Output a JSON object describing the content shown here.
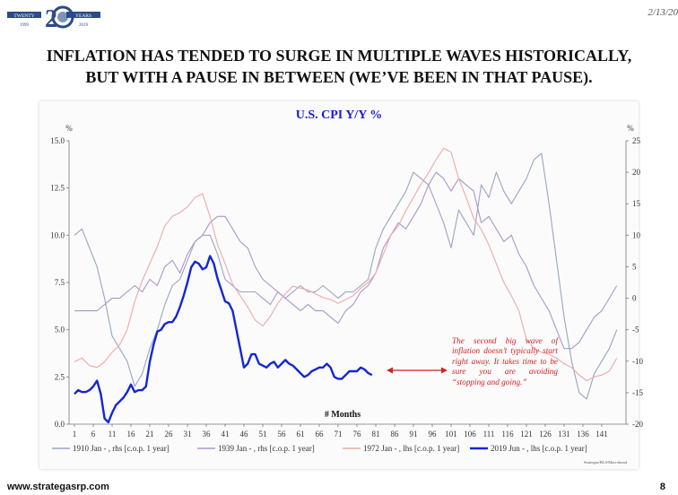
{
  "header": {
    "logo_text_left": "TWENTY",
    "logo_text_right": "YEARS",
    "logo_years_left": "1999",
    "logo_years_right": "2019",
    "date": "2/13/20"
  },
  "headline": {
    "line1": "INFLATION HAS TENDED TO SURGE IN MULTIPLE WAVES HISTORICALLY,",
    "line2": "BUT WITH A PAUSE IN BETWEEN (WE’VE BEEN IN THAT PAUSE)."
  },
  "footer": {
    "url": "www.strategasrp.com",
    "page": "8"
  },
  "chart_data": {
    "type": "line",
    "title": "U.S. CPI Y/Y %",
    "xlabel": "# Months",
    "left_unit": "%",
    "right_unit": "%",
    "xlim": [
      1,
      146
    ],
    "ylim_left": [
      0,
      15
    ],
    "ylim_right": [
      -20,
      25
    ],
    "x_ticks": [
      1,
      6,
      11,
      16,
      21,
      26,
      31,
      36,
      41,
      46,
      51,
      56,
      61,
      66,
      71,
      76,
      81,
      86,
      91,
      96,
      101,
      106,
      111,
      116,
      121,
      126,
      131,
      136,
      141
    ],
    "left_ticks": [
      "0.0",
      "2.5",
      "5.0",
      "7.5",
      "10.0",
      "12.5",
      "15.0"
    ],
    "right_ticks": [
      "-20",
      "-15",
      "-10",
      "-5",
      "0",
      "5",
      "10",
      "15",
      "20",
      "25"
    ],
    "annotation": "The second big wave of inflation doesn’t typically start right away. It takes time to be sure you are avoiding “stopping and going.”",
    "source": "Strategas/BLS/Macrobond",
    "colors": {
      "s1910": "#9aa3c4",
      "s1939": "#a996cc",
      "s1972": "#f0a8ab",
      "s2019": "#1226d8",
      "title": "#1a1adb",
      "annotation": "#d42020",
      "arrow": "#d42020"
    },
    "series": [
      {
        "name": "1910 Jan - , rhs [c.o.p. 1 year]",
        "axis": "right",
        "x": [
          1,
          3,
          5,
          7,
          9,
          11,
          13,
          15,
          17,
          19,
          21,
          23,
          25,
          27,
          29,
          31,
          33,
          35,
          37,
          39,
          41,
          43,
          45,
          47,
          49,
          51,
          53,
          55,
          57,
          59,
          61,
          63,
          65,
          67,
          69,
          71,
          73,
          75,
          77,
          79,
          81,
          83,
          85,
          87,
          89,
          91,
          93,
          95,
          97,
          99,
          101,
          103,
          105,
          107,
          109,
          111,
          113,
          115,
          117,
          119,
          121,
          123,
          125,
          127,
          129,
          131,
          133,
          135,
          137,
          139,
          141,
          143,
          145
        ],
        "values": [
          10,
          11,
          8,
          5,
          0,
          -6,
          -8,
          -10,
          -14,
          -12,
          -8,
          -5,
          -1,
          2,
          3,
          6,
          9,
          10,
          10,
          7,
          3,
          2,
          1,
          1,
          1,
          0,
          -1,
          1,
          0,
          1,
          2,
          1,
          1,
          2,
          1,
          0,
          1,
          1,
          2,
          3,
          8,
          11,
          13,
          15,
          17,
          20,
          19,
          18,
          15,
          12,
          8,
          14,
          12,
          10,
          18,
          16,
          20,
          17,
          15,
          17,
          19,
          22,
          23,
          15,
          6,
          -3,
          -10,
          -15,
          -16,
          -12,
          -10,
          -8,
          -5
        ]
      },
      {
        "name": "1939 Jan - , rhs [c.o.p. 1 year]",
        "axis": "right",
        "x": [
          1,
          3,
          5,
          7,
          9,
          11,
          13,
          15,
          17,
          19,
          21,
          23,
          25,
          27,
          29,
          31,
          33,
          35,
          37,
          39,
          41,
          43,
          45,
          47,
          49,
          51,
          53,
          55,
          57,
          59,
          61,
          63,
          65,
          67,
          69,
          71,
          73,
          75,
          77,
          79,
          81,
          83,
          85,
          87,
          89,
          91,
          93,
          95,
          97,
          99,
          101,
          103,
          105,
          107,
          109,
          111,
          113,
          115,
          117,
          119,
          121,
          123,
          125,
          127,
          129,
          131,
          133,
          135,
          137,
          139,
          141,
          143,
          145
        ],
        "values": [
          -2,
          -2,
          -2,
          -2,
          -1,
          0,
          0,
          1,
          2,
          1,
          3,
          2,
          5,
          6,
          4,
          7,
          9,
          10,
          12,
          13,
          13,
          11,
          9,
          8,
          5,
          3,
          2,
          1,
          0,
          -1,
          -2,
          -1,
          -2,
          -2,
          -3,
          -4,
          -2,
          -1,
          1,
          2,
          4,
          8,
          10,
          12,
          11,
          13,
          15,
          18,
          20,
          19,
          17,
          19,
          18,
          17,
          12,
          13,
          11,
          9,
          10,
          7,
          5,
          2,
          0,
          -2,
          -5,
          -8,
          -8,
          -7,
          -5,
          -3,
          -2,
          0,
          2
        ]
      },
      {
        "name": "1972 Jan - , lhs [c.o.p. 1 year]",
        "axis": "left",
        "x": [
          1,
          3,
          5,
          7,
          9,
          11,
          13,
          15,
          17,
          19,
          21,
          23,
          25,
          27,
          29,
          31,
          33,
          35,
          37,
          39,
          41,
          43,
          45,
          47,
          49,
          51,
          53,
          55,
          57,
          59,
          61,
          63,
          65,
          67,
          69,
          71,
          73,
          75,
          77,
          79,
          81,
          83,
          85,
          87,
          89,
          91,
          93,
          95,
          97,
          99,
          101,
          103,
          105,
          107,
          109,
          111,
          113,
          115,
          117,
          119,
          121,
          123,
          125,
          127,
          129,
          131,
          133,
          135,
          137,
          139,
          141,
          143,
          145
        ],
        "values": [
          3.3,
          3.5,
          3.1,
          3.0,
          3.3,
          3.8,
          4.2,
          5.0,
          6.5,
          7.6,
          8.5,
          9.4,
          10.5,
          11.0,
          11.2,
          11.5,
          12.0,
          12.2,
          11.0,
          9.5,
          8.5,
          7.4,
          6.8,
          6.2,
          5.5,
          5.2,
          5.7,
          6.4,
          6.9,
          7.3,
          7.2,
          7.1,
          6.9,
          6.7,
          6.6,
          6.4,
          6.6,
          6.8,
          7.2,
          7.5,
          8.0,
          9.0,
          10.0,
          10.5,
          11.3,
          12.0,
          12.7,
          13.3,
          14.0,
          14.6,
          14.4,
          13.0,
          12.0,
          10.9,
          10.3,
          9.5,
          8.5,
          7.5,
          6.8,
          6.0,
          4.5,
          4.0,
          3.8,
          3.7,
          3.5,
          3.2,
          3.0,
          2.6,
          2.3,
          2.5,
          2.6,
          2.8,
          3.5
        ]
      },
      {
        "name": "2019 Jun - , lhs [c.o.p. 1 year]",
        "axis": "left",
        "x": [
          1,
          2,
          3,
          4,
          5,
          6,
          7,
          8,
          9,
          10,
          11,
          12,
          13,
          14,
          15,
          16,
          17,
          18,
          19,
          20,
          21,
          22,
          23,
          24,
          25,
          26,
          27,
          28,
          29,
          30,
          31,
          32,
          33,
          34,
          35,
          36,
          37,
          38,
          39,
          40,
          41,
          42,
          43,
          44,
          45,
          46,
          47,
          48,
          49,
          50,
          51,
          52,
          53,
          54,
          55,
          56,
          57,
          58,
          59,
          60,
          61,
          62,
          63,
          64,
          65,
          66,
          67,
          68,
          69,
          70,
          71,
          72,
          73,
          74,
          75,
          76,
          77,
          78,
          79,
          80
        ],
        "values": [
          1.6,
          1.8,
          1.7,
          1.7,
          1.8,
          2.0,
          2.3,
          1.6,
          0.3,
          0.1,
          0.6,
          1.0,
          1.2,
          1.4,
          1.7,
          2.1,
          1.7,
          1.8,
          1.8,
          2.0,
          3.3,
          4.2,
          4.9,
          5.0,
          5.3,
          5.4,
          5.4,
          5.7,
          6.2,
          6.8,
          7.5,
          8.3,
          8.6,
          8.5,
          8.2,
          8.3,
          8.9,
          8.5,
          7.7,
          7.1,
          6.5,
          6.4,
          6.0,
          5.0,
          4.0,
          3.0,
          3.2,
          3.7,
          3.7,
          3.2,
          3.1,
          3.0,
          3.2,
          3.3,
          3.0,
          3.2,
          3.4,
          3.2,
          3.1,
          2.9,
          2.7,
          2.5,
          2.6,
          2.8,
          2.9,
          3.0,
          3.0,
          3.2,
          3.0,
          2.5,
          2.4,
          2.4,
          2.6,
          2.8,
          2.8,
          2.8,
          3.0,
          2.9,
          2.7,
          2.6
        ]
      }
    ]
  }
}
